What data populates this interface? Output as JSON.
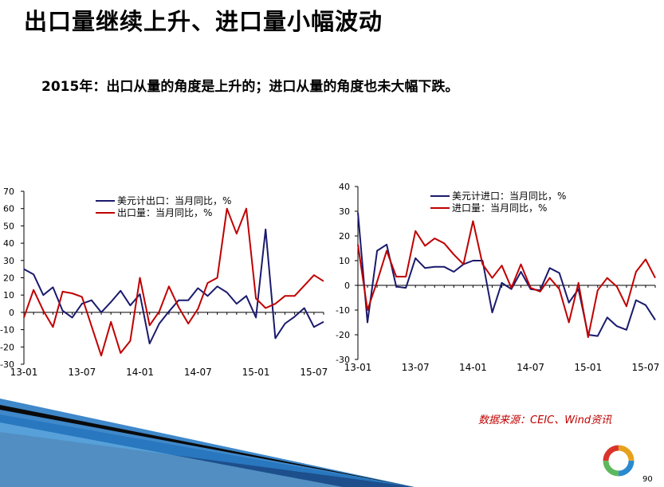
{
  "slide": {
    "title": "出口量继续上升、进口量小幅波动",
    "subtitle": "2015年：出口从量的角度是上升的；进口从量的角度也未大幅下跌。",
    "source": "数据来源：CEIC、Wind资讯",
    "page_number": "90"
  },
  "colors": {
    "navy": "#1a1a6e",
    "red": "#c00000",
    "source_red": "#c00000"
  },
  "chart_data": [
    {
      "type": "line",
      "title": "",
      "xlabel": "",
      "ylabel": "",
      "ylim": [
        -30,
        70
      ],
      "yticks": [
        -30,
        -20,
        -10,
        0,
        10,
        20,
        30,
        40,
        50,
        60,
        70
      ],
      "x_tick_labels": [
        "13-01",
        "13-07",
        "14-01",
        "14-07",
        "15-01",
        "15-07"
      ],
      "x_tick_months": [
        1,
        7,
        13,
        19,
        25,
        31
      ],
      "legend_position": "top-center",
      "x": [
        1,
        2,
        3,
        4,
        5,
        6,
        7,
        8,
        9,
        10,
        11,
        12,
        13,
        14,
        15,
        16,
        17,
        18,
        19,
        20,
        21,
        22,
        23,
        24,
        25,
        26,
        27,
        28,
        29,
        30,
        31,
        32
      ],
      "series": [
        {
          "name": "美元计出口：当月同比，%",
          "color": "#1a1a6e",
          "values": [
            25,
            22,
            10,
            14.5,
            1,
            -3,
            5,
            7,
            0,
            6,
            12.5,
            4,
            10.5,
            -18,
            -6.5,
            0.5,
            7,
            7,
            14,
            9.5,
            15,
            11.5,
            5,
            9.5,
            -3,
            48,
            -15,
            -6.5,
            -2.5,
            2.5,
            -8.5,
            -5.5
          ]
        },
        {
          "name": "出口量：当月同比，%",
          "color": "#c00000",
          "values": [
            -3,
            13,
            1,
            -8.5,
            12,
            11,
            9,
            -8,
            -25,
            -5.5,
            -23.5,
            -16.5,
            20,
            -7.5,
            0.5,
            15,
            3,
            -6.5,
            2,
            17,
            20,
            60,
            45.5,
            60,
            8,
            2.5,
            5,
            9.5,
            9.5,
            15.5,
            21.5,
            18
          ]
        }
      ]
    },
    {
      "type": "line",
      "title": "",
      "xlabel": "",
      "ylabel": "",
      "ylim": [
        -30,
        40
      ],
      "yticks": [
        -30,
        -20,
        -10,
        0,
        10,
        20,
        30,
        40
      ],
      "x_tick_labels": [
        "13-01",
        "13-07",
        "14-01",
        "14-07",
        "15-01",
        "15-07"
      ],
      "x_tick_months": [
        1,
        7,
        13,
        19,
        25,
        31
      ],
      "legend_position": "top-center",
      "x": [
        1,
        2,
        3,
        4,
        5,
        6,
        7,
        8,
        9,
        10,
        11,
        12,
        13,
        14,
        15,
        16,
        17,
        18,
        19,
        20,
        21,
        22,
        23,
        24,
        25,
        26,
        27,
        28,
        29,
        30,
        31,
        32
      ],
      "series": [
        {
          "name": "美元计进口：当月同比，%",
          "color": "#1a1a6e",
          "values": [
            29.5,
            -15,
            14,
            16.5,
            -0.5,
            -1,
            11,
            7,
            7.5,
            7.5,
            5.5,
            8.5,
            10,
            10,
            -11,
            1,
            -1.5,
            5.5,
            -1.5,
            -2,
            7,
            5,
            -7,
            -1.5,
            -20,
            -20.5,
            -13,
            -16.5,
            -18,
            -6,
            -8,
            -14
          ]
        },
        {
          "name": "进口量：当月同比，%",
          "color": "#c00000",
          "values": [
            16.5,
            -10,
            1.5,
            14,
            3.5,
            3.5,
            22,
            16,
            19,
            17,
            12.5,
            8.5,
            26,
            8.5,
            3,
            8,
            -1,
            8.5,
            -1,
            -2.5,
            3,
            -1.5,
            -15,
            1,
            -21,
            -2,
            3,
            -0.5,
            -8.5,
            5.5,
            10.5,
            3
          ]
        }
      ]
    }
  ]
}
